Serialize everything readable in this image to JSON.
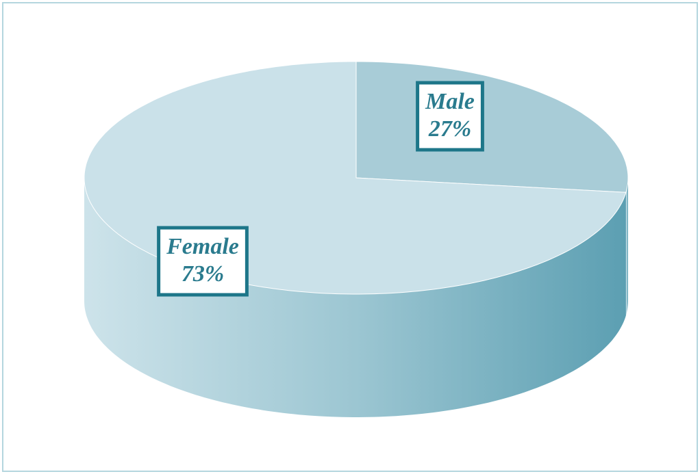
{
  "chart_data": {
    "type": "pie3d",
    "categories": [
      "Male",
      "Female"
    ],
    "values": [
      27,
      73
    ],
    "value_labels": [
      "27%",
      "73%"
    ],
    "colors": [
      "#a8ccd7",
      "#cae1e9"
    ]
  }
}
